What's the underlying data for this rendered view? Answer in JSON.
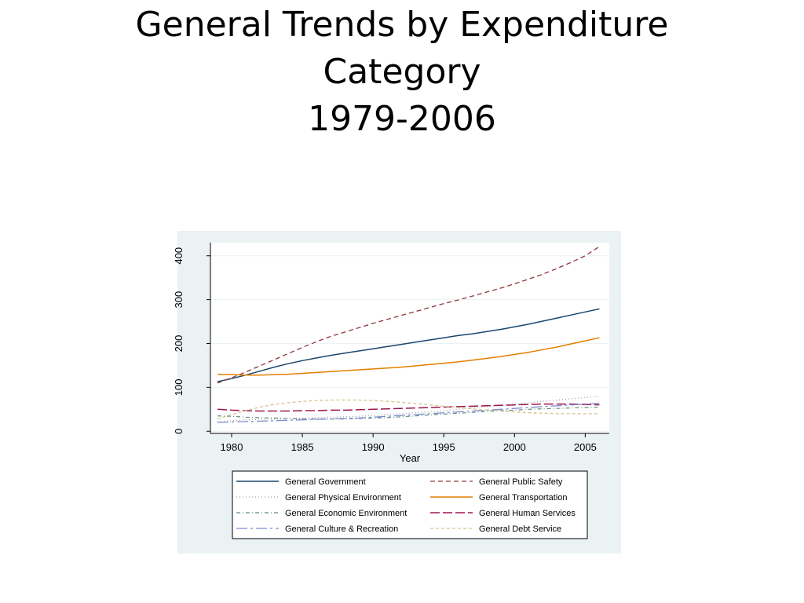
{
  "slide": {
    "title_line1": "General Trends by Expenditure",
    "title_line2": "Category",
    "title_line3": "1979-2006"
  },
  "colors": {
    "panel_bg": "#eaf2f3",
    "plot_bg": "#ffffff",
    "grid": "#eaf2f3"
  },
  "chart_data": {
    "type": "line",
    "title": "General Trends by Expenditure Category 1979-2006",
    "xlabel": "Year",
    "ylabel": "",
    "xlim": [
      1978.5,
      2006.7
    ],
    "ylim": [
      -5,
      430
    ],
    "xticks": [
      1980,
      1985,
      1990,
      1995,
      2000,
      2005
    ],
    "yticks": [
      0,
      100,
      200,
      300,
      400
    ],
    "grid": true,
    "legend_position": "bottom",
    "x": [
      1979,
      1980,
      1981,
      1982,
      1983,
      1984,
      1985,
      1986,
      1987,
      1988,
      1989,
      1990,
      1991,
      1992,
      1993,
      1994,
      1995,
      1996,
      1997,
      1998,
      1999,
      2000,
      2001,
      2002,
      2003,
      2004,
      2005,
      2006
    ],
    "series": [
      {
        "name": "General Government",
        "color": "#1a476f",
        "dash": "",
        "width": 1.5,
        "values": [
          113,
          120,
          128,
          137,
          146,
          154,
          161,
          167,
          173,
          178,
          183,
          188,
          193,
          198,
          203,
          208,
          213,
          218,
          222,
          227,
          232,
          238,
          244,
          251,
          258,
          265,
          272,
          279
        ]
      },
      {
        "name": "General Public Safety",
        "color": "#90353b",
        "dash": "6,4",
        "width": 1.3,
        "values": [
          110,
          122,
          135,
          149,
          163,
          177,
          191,
          204,
          216,
          226,
          236,
          246,
          255,
          264,
          273,
          282,
          291,
          299,
          308,
          317,
          326,
          336,
          347,
          358,
          371,
          385,
          400,
          421
        ]
      },
      {
        "name": "General Physical Environment",
        "color": "#a0a0a0",
        "dash": "1,3",
        "width": 1.3,
        "values": [
          22,
          24,
          26,
          27,
          28,
          29,
          30,
          31,
          32,
          33,
          34,
          36,
          38,
          40,
          42,
          44,
          47,
          50,
          53,
          56,
          59,
          62,
          65,
          68,
          71,
          74,
          77,
          80
        ]
      },
      {
        "name": "General Transportation",
        "color": "#e37e00",
        "dash": "",
        "width": 1.5,
        "values": [
          130,
          129,
          128,
          128,
          129,
          130,
          132,
          134,
          136,
          138,
          140,
          142,
          144,
          146,
          149,
          152,
          155,
          158,
          162,
          166,
          170,
          175,
          180,
          186,
          192,
          199,
          206,
          213
        ]
      },
      {
        "name": "General Economic Environment",
        "color": "#5e8a80",
        "dash": "5,3,1,3",
        "width": 1.2,
        "values": [
          35,
          34,
          32,
          31,
          30,
          29,
          28,
          28,
          28,
          28,
          29,
          30,
          31,
          33,
          35,
          37,
          39,
          41,
          43,
          45,
          47,
          48,
          50,
          51,
          52,
          53,
          54,
          55
        ]
      },
      {
        "name": "General Human Services",
        "color": "#9f1550",
        "dash": "12,4",
        "width": 1.5,
        "values": [
          50,
          48,
          47,
          46,
          46,
          46,
          47,
          47,
          48,
          48,
          49,
          50,
          51,
          52,
          53,
          54,
          55,
          56,
          57,
          58,
          59,
          60,
          61,
          62,
          62,
          62,
          61,
          60
        ]
      },
      {
        "name": "General Culture & Recreation",
        "color": "#7f8bd1",
        "dash": "14,4,3,4",
        "width": 1.3,
        "values": [
          20,
          21,
          22,
          23,
          24,
          25,
          26,
          27,
          28,
          29,
          30,
          32,
          34,
          36,
          38,
          40,
          42,
          44,
          46,
          48,
          50,
          52,
          54,
          56,
          58,
          60,
          62,
          64
        ]
      },
      {
        "name": "General Debt Service",
        "color": "#d6c48e",
        "dash": "4,3",
        "width": 1.3,
        "values": [
          28,
          38,
          47,
          55,
          61,
          65,
          68,
          70,
          71,
          71,
          71,
          70,
          68,
          66,
          63,
          60,
          57,
          54,
          51,
          48,
          46,
          44,
          42,
          41,
          40,
          40,
          40,
          40
        ]
      }
    ]
  }
}
